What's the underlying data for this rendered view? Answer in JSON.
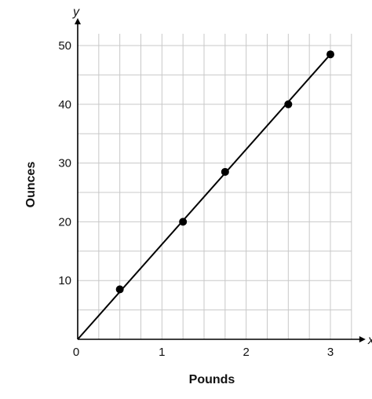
{
  "chart_data": {
    "type": "scatter",
    "xlabel": "Pounds",
    "ylabel": "Ounces",
    "x_axis_letter": "x",
    "y_axis_letter": "y",
    "origin_label": "0",
    "xlim": [
      0,
      3.25
    ],
    "ylim": [
      0,
      52
    ],
    "x_ticks": [
      1,
      2,
      3
    ],
    "y_ticks": [
      10,
      20,
      30,
      40,
      50
    ],
    "x_minor_step": 0.25,
    "y_minor_step": 5,
    "grid": true,
    "series": [
      {
        "values_x": [
          0.5,
          1.25,
          1.75,
          2.5,
          3.0
        ],
        "values_y": [
          8.5,
          20,
          28.5,
          40,
          48.5
        ]
      }
    ],
    "line": {
      "from": [
        0,
        0
      ],
      "to": [
        3.0,
        48.5
      ]
    },
    "colors": {
      "grid": "#c8c8c8",
      "ink": "#000000"
    }
  }
}
